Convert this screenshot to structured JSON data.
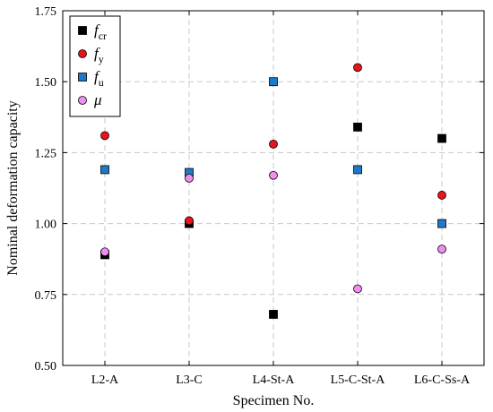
{
  "chart_data": {
    "type": "scatter",
    "title": "",
    "xlabel": "Specimen No.",
    "ylabel": "Nominal deformation capacity",
    "categories": [
      "L2-A",
      "L3-C",
      "L4-St-A",
      "L5-C-St-A",
      "L6-C-Ss-A"
    ],
    "ylim": [
      0.5,
      1.75
    ],
    "yticks": [
      "0.50",
      "0.75",
      "1.00",
      "1.25",
      "1.50",
      "1.75"
    ],
    "grid": true,
    "legend_position": "top-left",
    "series": [
      {
        "name": "f",
        "sub": "cr",
        "marker": "square",
        "color": "#000000",
        "values": [
          0.89,
          1.0,
          0.68,
          1.34,
          1.3
        ]
      },
      {
        "name": "f",
        "sub": "y",
        "marker": "circle",
        "color": "#e8141c",
        "values": [
          1.31,
          1.01,
          1.28,
          1.55,
          1.1
        ]
      },
      {
        "name": "f",
        "sub": "u",
        "marker": "square",
        "color": "#1f78c8",
        "values": [
          1.19,
          1.18,
          1.5,
          1.19,
          1.0
        ]
      },
      {
        "name": "μ",
        "sub": "",
        "marker": "circle",
        "color": "#f08ef0",
        "values": [
          0.9,
          1.16,
          1.17,
          0.77,
          0.91
        ]
      }
    ]
  }
}
